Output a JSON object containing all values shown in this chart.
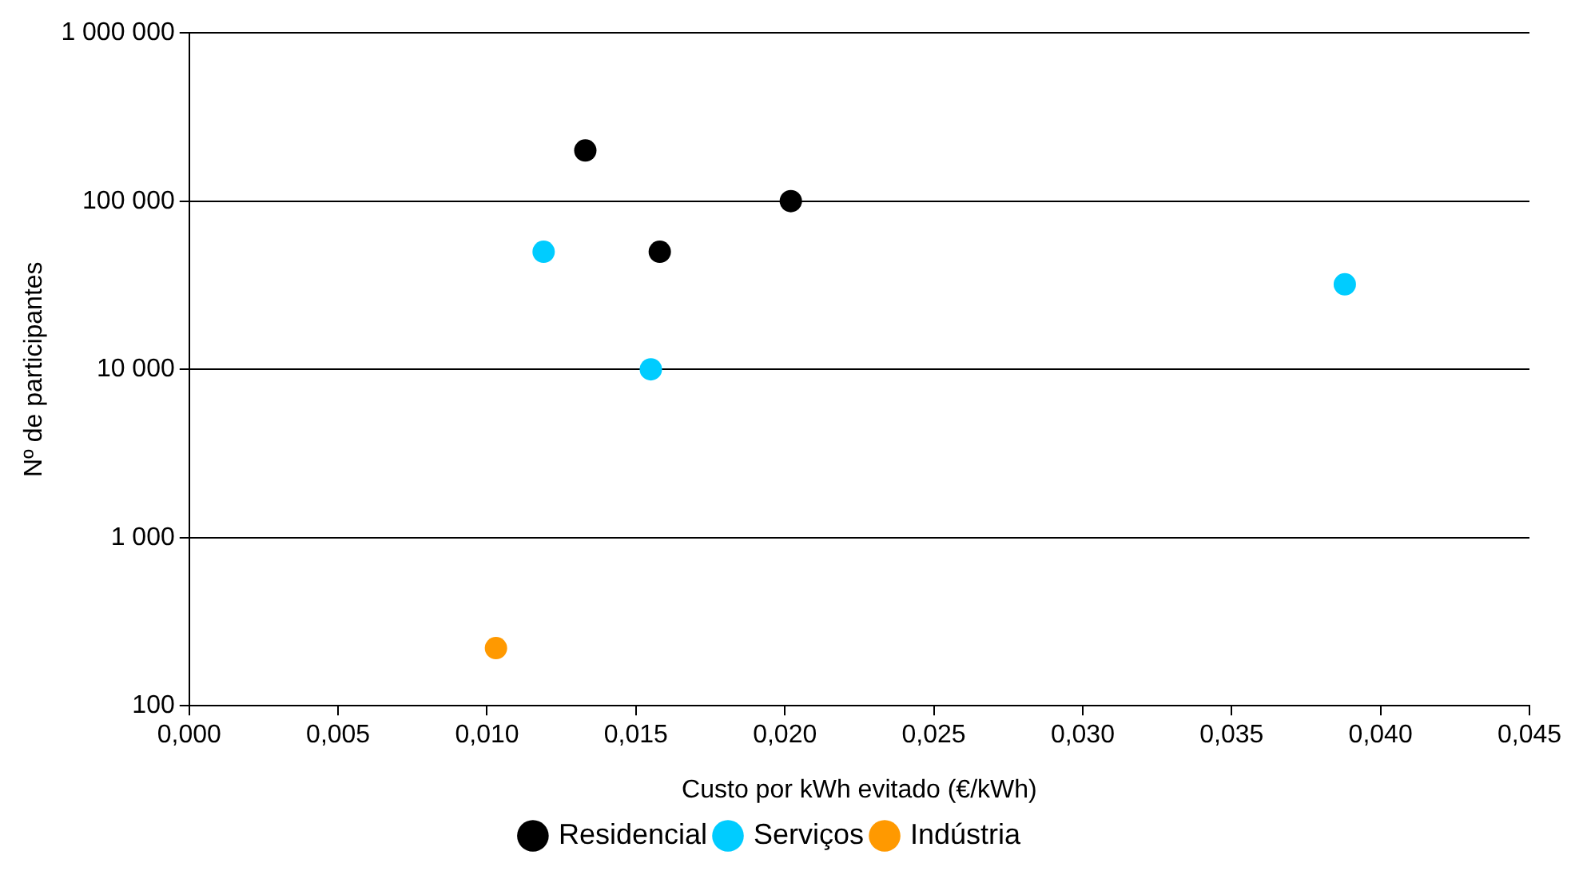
{
  "chart_data": {
    "type": "scatter",
    "xlabel": "Custo por kWh evitado (€/kWh)",
    "ylabel": "Nº de participantes",
    "series": [
      {
        "name": "Residencial",
        "color": "#000000",
        "x": [
          0.0133,
          0.0158,
          0.0202
        ],
        "values": [
          200000,
          50000,
          100000
        ]
      },
      {
        "name": "Serviços",
        "color": "#00ccff",
        "x": [
          0.0119,
          0.0155,
          0.0388
        ],
        "values": [
          50000,
          10000,
          32000
        ]
      },
      {
        "name": "Indústria",
        "color": "#ff9900",
        "x": [
          0.0103
        ],
        "values": [
          220
        ]
      }
    ],
    "xlim": [
      0,
      0.045
    ],
    "xticks": [
      {
        "value": 0,
        "label": "0,000"
      },
      {
        "value": 0.005,
        "label": "0,005"
      },
      {
        "value": 0.01,
        "label": "0,010"
      },
      {
        "value": 0.015,
        "label": "0,015"
      },
      {
        "value": 0.02,
        "label": "0,020"
      },
      {
        "value": 0.025,
        "label": "0,025"
      },
      {
        "value": 0.03,
        "label": "0,030"
      },
      {
        "value": 0.035,
        "label": "0,035"
      },
      {
        "value": 0.04,
        "label": "0,040"
      },
      {
        "value": 0.045,
        "label": "0,045"
      }
    ],
    "ylim": [
      100,
      1000000
    ],
    "yticks": [
      100,
      {
        "value": 1000,
        "label": "1 000"
      },
      {
        "value": 10000,
        "label": "10 000"
      },
      {
        "value": 100000,
        "label": "100 000"
      },
      {
        "value": 1000000,
        "label": "1 000 000"
      }
    ],
    "log": "y",
    "grid": "y",
    "legend": "bottom",
    "marker": "circle"
  }
}
